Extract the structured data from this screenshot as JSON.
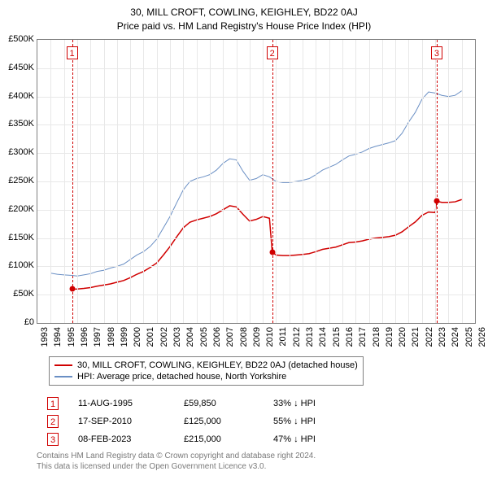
{
  "title": "30, MILL CROFT, COWLING, KEIGHLEY, BD22 0AJ",
  "subtitle": "Price paid vs. HM Land Registry's House Price Index (HPI)",
  "chart": {
    "type": "line",
    "background_color": "#ffffff",
    "grid_color": "#e8e8e8",
    "border_color": "#808080",
    "x_axis": {
      "min_year": 1993,
      "max_year": 2026,
      "ticks": [
        1993,
        1994,
        1995,
        1996,
        1997,
        1998,
        1999,
        2000,
        2001,
        2002,
        2003,
        2004,
        2005,
        2006,
        2007,
        2008,
        2009,
        2010,
        2011,
        2012,
        2013,
        2014,
        2015,
        2016,
        2017,
        2018,
        2019,
        2020,
        2021,
        2022,
        2023,
        2024,
        2025,
        2026
      ],
      "tick_fontsize": 11,
      "label_rotation": -90
    },
    "y_axis": {
      "min": 0,
      "max": 500000,
      "ticks": [
        0,
        50000,
        100000,
        150000,
        200000,
        250000,
        300000,
        350000,
        400000,
        450000,
        500000
      ],
      "tick_labels": [
        "£0",
        "£50K",
        "£100K",
        "£150K",
        "£200K",
        "£250K",
        "£300K",
        "£350K",
        "£400K",
        "£450K",
        "£500K"
      ],
      "tick_fontsize": 11
    },
    "series": [
      {
        "name": "hpi",
        "label": "HPI: Average price, detached house, North Yorkshire",
        "color": "#6a8fc4",
        "line_width": 1,
        "data": [
          [
            1994.0,
            88000
          ],
          [
            1994.5,
            86000
          ],
          [
            1995.0,
            85000
          ],
          [
            1995.6,
            84000
          ],
          [
            1996.0,
            83000
          ],
          [
            1996.5,
            85000
          ],
          [
            1997.0,
            87000
          ],
          [
            1997.5,
            91000
          ],
          [
            1998.0,
            93000
          ],
          [
            1998.5,
            97000
          ],
          [
            1999.0,
            100000
          ],
          [
            1999.5,
            104000
          ],
          [
            2000.0,
            112000
          ],
          [
            2000.5,
            120000
          ],
          [
            2001.0,
            126000
          ],
          [
            2001.5,
            135000
          ],
          [
            2002.0,
            148000
          ],
          [
            2002.5,
            168000
          ],
          [
            2003.0,
            188000
          ],
          [
            2003.5,
            212000
          ],
          [
            2004.0,
            235000
          ],
          [
            2004.5,
            250000
          ],
          [
            2005.0,
            255000
          ],
          [
            2005.5,
            258000
          ],
          [
            2006.0,
            262000
          ],
          [
            2006.5,
            270000
          ],
          [
            2007.0,
            282000
          ],
          [
            2007.5,
            290000
          ],
          [
            2008.0,
            288000
          ],
          [
            2008.5,
            268000
          ],
          [
            2009.0,
            252000
          ],
          [
            2009.5,
            255000
          ],
          [
            2010.0,
            262000
          ],
          [
            2010.5,
            258000
          ],
          [
            2011.0,
            250000
          ],
          [
            2011.5,
            248000
          ],
          [
            2012.0,
            248000
          ],
          [
            2012.5,
            250000
          ],
          [
            2013.0,
            252000
          ],
          [
            2013.5,
            255000
          ],
          [
            2014.0,
            262000
          ],
          [
            2014.5,
            270000
          ],
          [
            2015.0,
            275000
          ],
          [
            2015.5,
            280000
          ],
          [
            2016.0,
            288000
          ],
          [
            2016.5,
            295000
          ],
          [
            2017.0,
            298000
          ],
          [
            2017.5,
            302000
          ],
          [
            2018.0,
            308000
          ],
          [
            2018.5,
            312000
          ],
          [
            2019.0,
            315000
          ],
          [
            2019.5,
            318000
          ],
          [
            2020.0,
            322000
          ],
          [
            2020.5,
            335000
          ],
          [
            2021.0,
            355000
          ],
          [
            2021.5,
            372000
          ],
          [
            2022.0,
            395000
          ],
          [
            2022.5,
            408000
          ],
          [
            2023.0,
            406000
          ],
          [
            2023.5,
            402000
          ],
          [
            2024.0,
            400000
          ],
          [
            2024.5,
            402000
          ],
          [
            2025.0,
            410000
          ]
        ]
      },
      {
        "name": "price_paid",
        "label": "30, MILL CROFT, COWLING, KEIGHLEY, BD22 0AJ (detached house)",
        "color": "#d00000",
        "line_width": 1.5,
        "data": [
          [
            1995.61,
            59850
          ],
          [
            1996.0,
            60000
          ],
          [
            1996.5,
            61000
          ],
          [
            1997.0,
            62500
          ],
          [
            1997.5,
            65000
          ],
          [
            1998.0,
            67000
          ],
          [
            1998.5,
            69000
          ],
          [
            1999.0,
            72000
          ],
          [
            1999.5,
            75000
          ],
          [
            2000.0,
            80000
          ],
          [
            2000.5,
            86000
          ],
          [
            2001.0,
            91000
          ],
          [
            2001.5,
            98000
          ],
          [
            2002.0,
            106000
          ],
          [
            2002.5,
            120000
          ],
          [
            2003.0,
            135000
          ],
          [
            2003.5,
            152000
          ],
          [
            2004.0,
            168000
          ],
          [
            2004.5,
            178000
          ],
          [
            2005.0,
            182000
          ],
          [
            2005.5,
            185000
          ],
          [
            2006.0,
            188000
          ],
          [
            2006.5,
            193000
          ],
          [
            2007.0,
            200000
          ],
          [
            2007.5,
            207000
          ],
          [
            2008.0,
            205000
          ],
          [
            2008.5,
            192000
          ],
          [
            2009.0,
            180000
          ],
          [
            2009.5,
            183000
          ],
          [
            2010.0,
            188000
          ],
          [
            2010.5,
            185000
          ],
          [
            2010.71,
            125000
          ],
          [
            2011.0,
            120000
          ],
          [
            2011.5,
            119000
          ],
          [
            2012.0,
            119000
          ],
          [
            2012.5,
            120000
          ],
          [
            2013.0,
            121000
          ],
          [
            2013.5,
            122500
          ],
          [
            2014.0,
            126000
          ],
          [
            2014.5,
            130000
          ],
          [
            2015.0,
            132000
          ],
          [
            2015.5,
            134000
          ],
          [
            2016.0,
            138000
          ],
          [
            2016.5,
            142000
          ],
          [
            2017.0,
            143000
          ],
          [
            2017.5,
            145000
          ],
          [
            2018.0,
            148000
          ],
          [
            2018.5,
            150000
          ],
          [
            2019.0,
            151000
          ],
          [
            2019.5,
            152500
          ],
          [
            2020.0,
            155000
          ],
          [
            2020.5,
            161000
          ],
          [
            2021.0,
            170000
          ],
          [
            2021.5,
            178500
          ],
          [
            2022.0,
            190000
          ],
          [
            2022.5,
            196000
          ],
          [
            2023.0,
            195000
          ],
          [
            2023.11,
            215000
          ],
          [
            2023.5,
            213000
          ],
          [
            2024.0,
            213000
          ],
          [
            2024.5,
            214000
          ],
          [
            2025.0,
            218000
          ]
        ]
      }
    ],
    "events": [
      {
        "index": "1",
        "year": 1995.61,
        "value": 59850,
        "line_color": "#d00000"
      },
      {
        "index": "2",
        "year": 2010.71,
        "value": 125000,
        "line_color": "#d00000"
      },
      {
        "index": "3",
        "year": 2023.11,
        "value": 215000,
        "line_color": "#d00000"
      }
    ],
    "event_marker_dot_color": "#d00000"
  },
  "legend": {
    "border_color": "#808080",
    "fontsize": 11
  },
  "event_table": {
    "rows": [
      {
        "n": "1",
        "date": "11-AUG-1995",
        "price": "£59,850",
        "delta": "33% ↓ HPI"
      },
      {
        "n": "2",
        "date": "17-SEP-2010",
        "price": "£125,000",
        "delta": "55% ↓ HPI"
      },
      {
        "n": "3",
        "date": "08-FEB-2023",
        "price": "£215,000",
        "delta": "47% ↓ HPI"
      }
    ],
    "box_color": "#d00000"
  },
  "footer": {
    "line1": "Contains HM Land Registry data © Crown copyright and database right 2024.",
    "line2": "This data is licensed under the Open Government Licence v3.0.",
    "color": "#7a7a7a"
  }
}
